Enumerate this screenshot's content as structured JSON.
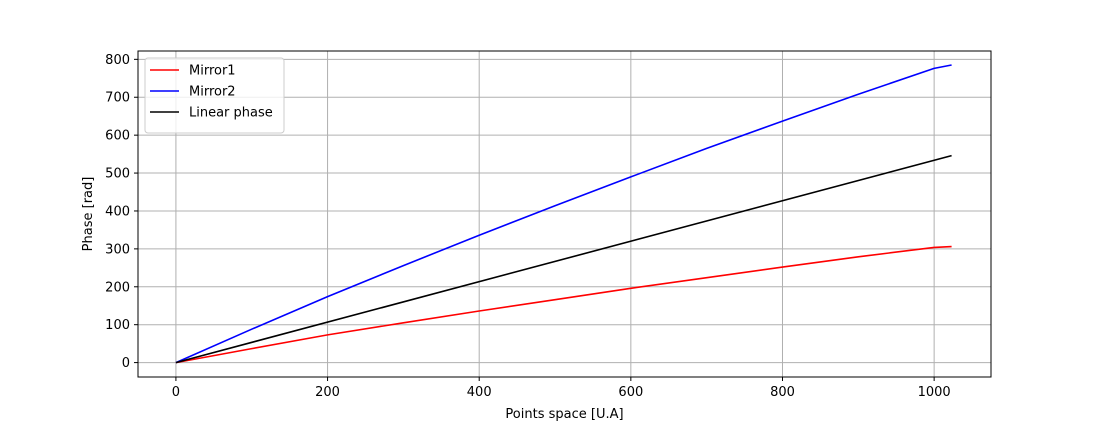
{
  "chart_data": {
    "type": "line",
    "title": "",
    "xlabel": "Points space [U.A]",
    "ylabel": "Phase [rad]",
    "xlim": [
      -50,
      1075
    ],
    "ylim": [
      -38,
      822
    ],
    "xticks": [
      0,
      200,
      400,
      600,
      800,
      1000
    ],
    "yticks": [
      0,
      100,
      200,
      300,
      400,
      500,
      600,
      700,
      800
    ],
    "grid": true,
    "legend_position": "top-left",
    "series": [
      {
        "name": "Mirror1",
        "color": "#ff0000",
        "x": [
          0,
          100,
          200,
          300,
          400,
          500,
          600,
          700,
          800,
          900,
          1000,
          1023
        ],
        "y": [
          0,
          37,
          73,
          105,
          136,
          166,
          196,
          224,
          252,
          279,
          304,
          306
        ]
      },
      {
        "name": "Mirror2",
        "color": "#0000ff",
        "x": [
          0,
          100,
          200,
          300,
          400,
          500,
          600,
          700,
          800,
          900,
          1000,
          1023
        ],
        "y": [
          0,
          88,
          174,
          256,
          336,
          414,
          490,
          565,
          637,
          708,
          776,
          785
        ]
      },
      {
        "name": "Linear phase",
        "color": "#000000",
        "x": [
          0,
          1023
        ],
        "y": [
          0,
          546
        ]
      }
    ]
  }
}
